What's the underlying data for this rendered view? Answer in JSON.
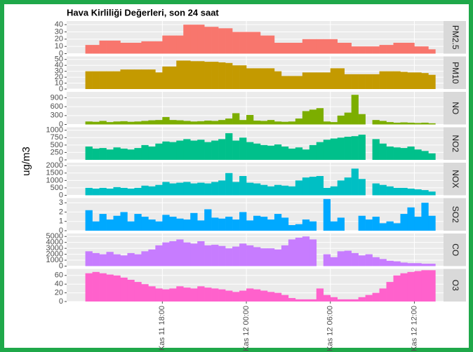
{
  "chart_data": {
    "type": "area",
    "title": "Hava Kirliliği Değerleri, son 24 saat",
    "y_label": "ug/m3",
    "x": [
      "Kas 11 12:30",
      "Kas 11 13:00",
      "Kas 11 13:30",
      "Kas 11 14:00",
      "Kas 11 14:30",
      "Kas 11 15:00",
      "Kas 11 15:30",
      "Kas 11 16:00",
      "Kas 11 16:30",
      "Kas 11 17:00",
      "Kas 11 17:30",
      "Kas 11 18:00",
      "Kas 11 18:30",
      "Kas 11 19:00",
      "Kas 11 19:30",
      "Kas 11 20:00",
      "Kas 11 20:30",
      "Kas 11 21:00",
      "Kas 11 21:30",
      "Kas 11 22:00",
      "Kas 11 22:30",
      "Kas 11 23:00",
      "Kas 11 23:30",
      "Kas 12 00:00",
      "Kas 12 00:30",
      "Kas 12 01:00",
      "Kas 12 01:30",
      "Kas 12 02:00",
      "Kas 12 02:30",
      "Kas 12 03:00",
      "Kas 12 03:30",
      "Kas 12 04:00",
      "Kas 12 04:30",
      "Kas 12 05:00",
      "Kas 12 05:30",
      "Kas 12 06:00",
      "Kas 12 06:30",
      "Kas 12 07:00",
      "Kas 12 07:30",
      "Kas 12 08:00",
      "Kas 12 08:30",
      "Kas 12 09:00",
      "Kas 12 09:30",
      "Kas 12 10:00",
      "Kas 12 10:30",
      "Kas 12 11:00",
      "Kas 12 11:30",
      "Kas 12 12:00",
      "Kas 12 12:30",
      "Kas 12 13:00"
    ],
    "xlim": [
      "Kas 11 11:10",
      "Kas 12 14:05"
    ],
    "xticks": [
      "Kas 11 18:00",
      "Kas 12 00:00",
      "Kas 12 06:00",
      "Kas 12 12:00"
    ],
    "grid": true,
    "series": [
      {
        "name": "PM2.5",
        "color": "#f8766d",
        "ylim": [
          0,
          45
        ],
        "yticks": [
          0,
          10,
          20,
          30,
          40
        ],
        "values": [
          12,
          12,
          18,
          18,
          18,
          15,
          15,
          15,
          17,
          17,
          17,
          25,
          25,
          25,
          40,
          40,
          40,
          37,
          37,
          35,
          35,
          30,
          30,
          30,
          30,
          25,
          25,
          15,
          15,
          15,
          15,
          20,
          20,
          20,
          20,
          20,
          15,
          15,
          10,
          10,
          10,
          10,
          12,
          12,
          15,
          15,
          15,
          10,
          10,
          6
        ]
      },
      {
        "name": "PM10",
        "color": "#c49a00",
        "ylim": [
          0,
          55
        ],
        "yticks": [
          0,
          10,
          20,
          30,
          40,
          50
        ],
        "values": [
          30,
          30,
          30,
          30,
          30,
          33,
          33,
          33,
          33,
          33,
          28,
          38,
          38,
          48,
          48,
          47,
          47,
          46,
          46,
          45,
          44,
          40,
          40,
          35,
          35,
          35,
          35,
          30,
          22,
          22,
          22,
          28,
          28,
          28,
          28,
          35,
          35,
          25,
          25,
          25,
          25,
          25,
          30,
          30,
          30,
          29,
          28,
          28,
          27,
          24
        ]
      },
      {
        "name": "NO",
        "color": "#7cae00",
        "ylim": [
          0,
          1100
        ],
        "yticks": [
          0,
          300,
          600,
          900
        ],
        "values": [
          100,
          90,
          120,
          80,
          100,
          110,
          90,
          100,
          120,
          140,
          150,
          250,
          150,
          140,
          120,
          100,
          110,
          130,
          120,
          150,
          200,
          380,
          150,
          320,
          130,
          120,
          150,
          100,
          90,
          100,
          200,
          450,
          500,
          550,
          100,
          80,
          300,
          400,
          1000,
          350,
          0,
          150,
          120,
          80,
          60,
          70,
          60,
          50,
          60,
          40
        ]
      },
      {
        "name": "NO2",
        "color": "#00c08b",
        "ylim": [
          0,
          1100
        ],
        "yticks": [
          0,
          250,
          500,
          750,
          1000
        ],
        "values": [
          450,
          380,
          400,
          350,
          420,
          380,
          350,
          400,
          500,
          450,
          550,
          620,
          600,
          650,
          700,
          650,
          680,
          600,
          650,
          700,
          900,
          650,
          750,
          600,
          550,
          500,
          480,
          520,
          450,
          380,
          420,
          350,
          500,
          600,
          680,
          720,
          750,
          780,
          800,
          850,
          0,
          700,
          550,
          450,
          420,
          400,
          450,
          350,
          300,
          220
        ]
      },
      {
        "name": "NOX",
        "color": "#00bfc4",
        "ylim": [
          0,
          2200
        ],
        "yticks": [
          0,
          500,
          1000,
          1500,
          2000
        ],
        "values": [
          500,
          450,
          500,
          450,
          550,
          500,
          450,
          500,
          650,
          600,
          700,
          900,
          800,
          850,
          900,
          800,
          850,
          800,
          900,
          1000,
          1500,
          900,
          1300,
          850,
          800,
          700,
          600,
          700,
          650,
          600,
          1000,
          1200,
          1250,
          1300,
          500,
          600,
          1000,
          1200,
          1800,
          1100,
          0,
          800,
          700,
          600,
          500,
          500,
          450,
          400,
          350,
          250
        ]
      },
      {
        "name": "SO2",
        "color": "#00a9ff",
        "ylim": [
          0,
          3.5
        ],
        "yticks": [
          0,
          1,
          2,
          3
        ],
        "values": [
          2.2,
          1.0,
          1.8,
          1.2,
          1.6,
          2.0,
          1.0,
          1.8,
          1.5,
          1.2,
          1.0,
          1.7,
          1.5,
          1.3,
          1.2,
          1.9,
          1.1,
          2.3,
          1.4,
          1.3,
          1.5,
          1.2,
          2.0,
          1.1,
          1.6,
          1.5,
          1.2,
          1.8,
          1.4,
          0.6,
          0.7,
          1.2,
          1.0,
          0,
          3.4,
          1.0,
          1.4,
          0,
          0,
          1.6,
          1.2,
          1.5,
          0.8,
          1.0,
          0.8,
          1.8,
          2.5,
          1.5,
          3.0,
          1.6
        ]
      },
      {
        "name": "CO",
        "color": "#c77cff",
        "ylim": [
          0,
          5500
        ],
        "yticks": [
          0,
          1000,
          2000,
          3000,
          4000,
          5000
        ],
        "values": [
          2500,
          2200,
          2000,
          2400,
          2000,
          1800,
          2200,
          2000,
          2500,
          2800,
          3500,
          4000,
          4200,
          4500,
          4000,
          3800,
          4200,
          3500,
          3600,
          3400,
          3000,
          3300,
          3800,
          3500,
          3200,
          3000,
          3000,
          2800,
          3500,
          4500,
          4800,
          5000,
          4500,
          0,
          2000,
          1500,
          2500,
          2600,
          2200,
          1800,
          2000,
          1500,
          1200,
          900,
          800,
          600,
          500,
          500,
          400,
          400
        ]
      },
      {
        "name": "O3",
        "color": "#ff61cc",
        "ylim": [
          0,
          75
        ],
        "yticks": [
          0,
          20,
          40,
          60
        ],
        "values": [
          65,
          68,
          65,
          62,
          60,
          55,
          50,
          45,
          40,
          35,
          30,
          28,
          30,
          35,
          32,
          30,
          35,
          32,
          30,
          28,
          25,
          22,
          25,
          30,
          28,
          25,
          22,
          20,
          15,
          8,
          5,
          5,
          5,
          30,
          15,
          10,
          5,
          5,
          5,
          10,
          15,
          20,
          30,
          45,
          60,
          65,
          68,
          70,
          72,
          72
        ]
      }
    ]
  }
}
